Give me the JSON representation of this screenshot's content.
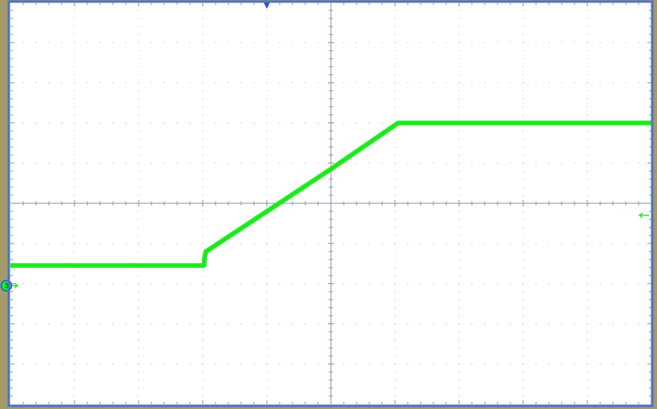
{
  "colors": {
    "screen_background": "#ffffff",
    "outer_bezel": "#a79a6a",
    "frame_border": "#4a74c8",
    "grid_major": "#8890a8",
    "grid_dot": "#9aa2b8",
    "trace": "#22ee22",
    "trigger_marker": "#1a58e0",
    "channel_marker": "#1a58e0"
  },
  "icons": {
    "trigger_position": "triangle-down-icon",
    "channel_ground": "circled-number-3-icon",
    "trigger_level": "left-arrow-icon"
  },
  "channel_marker_label": "3",
  "chart_data": {
    "type": "line",
    "title": "",
    "xlabel": "",
    "ylabel": "",
    "grid": true,
    "divisions": {
      "x": 10,
      "y": 10
    },
    "xlim": [
      -5,
      5
    ],
    "ylim": [
      -5,
      5
    ],
    "trigger_position_x": -1,
    "channel_ground_y": -2.05,
    "trigger_level_y": -0.3,
    "series": [
      {
        "x": [
          -5.0,
          -1.98,
          -1.97,
          -1.95,
          -1.9,
          0.0,
          1.05,
          1.1,
          5.0
        ],
        "y": [
          -1.55,
          -1.55,
          -1.35,
          -1.2,
          -1.15,
          0.85,
          2.0,
          2.0,
          2.0
        ]
      }
    ]
  }
}
